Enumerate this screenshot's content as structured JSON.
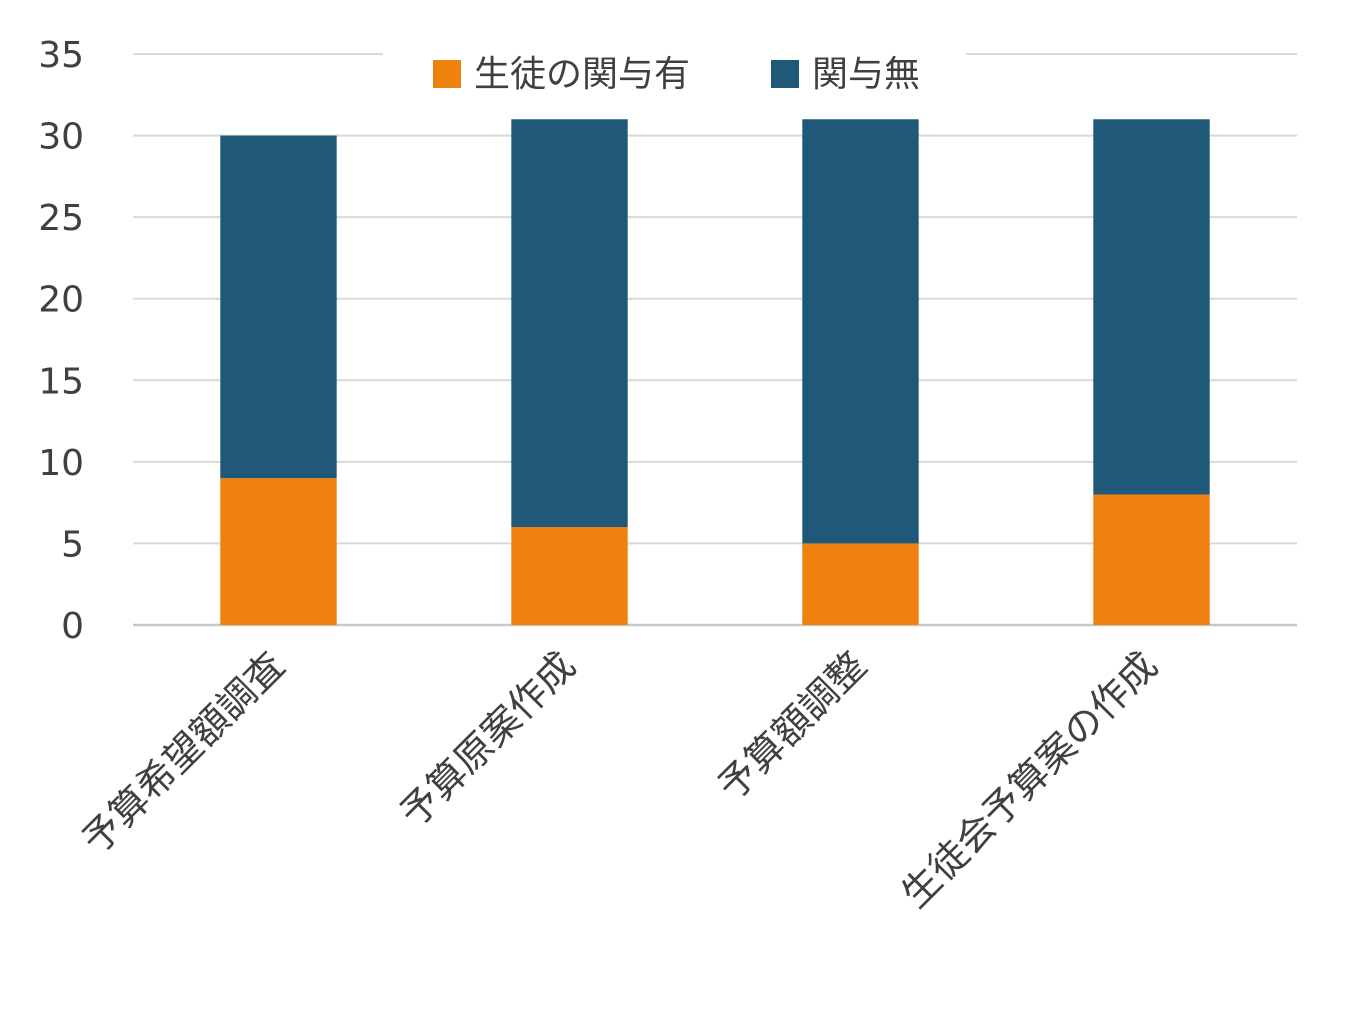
{
  "chart_data": {
    "type": "bar",
    "stacked": true,
    "categories": [
      "予算希望額調査",
      "予算原案作成",
      "予算額調整",
      "生徒会予算案の作成"
    ],
    "series": [
      {
        "name": "生徒の関与有",
        "color": "#EF810E",
        "values": [
          9,
          6,
          5,
          8
        ]
      },
      {
        "name": "関与無",
        "color": "#1F5879",
        "values": [
          21,
          25,
          26,
          23
        ]
      }
    ],
    "ylim": [
      0,
      35
    ],
    "yticks": [
      0,
      5,
      10,
      15,
      20,
      25,
      30,
      35
    ],
    "grid": true,
    "legend_position": "top"
  }
}
